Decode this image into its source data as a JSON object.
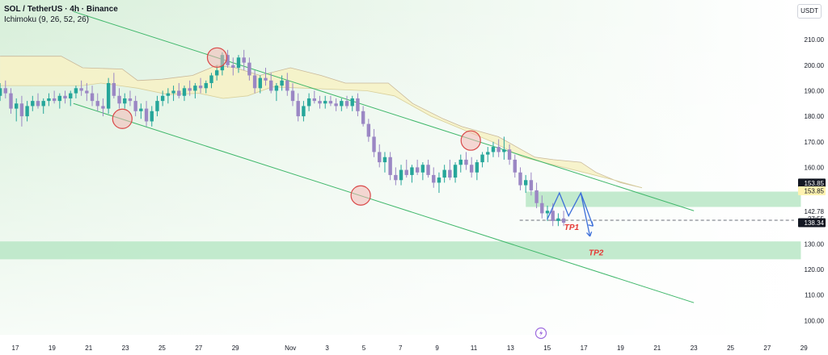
{
  "header": {
    "title": "SOL / TetherUS · 4h · Binance",
    "indicator": "Ichimoku (9, 26, 52, 26)",
    "currency_button": "USDT"
  },
  "colors": {
    "bull": "#26a69a",
    "bear": "#9b87c4",
    "channel": "#3fb76a",
    "zone": "#b9e6c6",
    "cloud": "#f6f2c6",
    "tp": "#e53935",
    "arrow": "#3d6fd9",
    "circle_fill": "#f2b8b5",
    "circle_stroke": "#d94848"
  },
  "chart_data": {
    "type": "candlestick",
    "y_ticks": [
      210,
      200,
      190,
      180,
      170,
      160,
      150,
      140,
      130,
      120,
      110,
      100
    ],
    "ylim": [
      96,
      223
    ],
    "x_ticks": [
      {
        "label": "17",
        "t": 0
      },
      {
        "label": "19",
        "t": 12
      },
      {
        "label": "21",
        "t": 24
      },
      {
        "label": "23",
        "t": 36
      },
      {
        "label": "25",
        "t": 48
      },
      {
        "label": "27",
        "t": 60
      },
      {
        "label": "29",
        "t": 72
      },
      {
        "label": "Nov",
        "t": 90
      },
      {
        "label": "3",
        "t": 102
      },
      {
        "label": "5",
        "t": 114
      },
      {
        "label": "7",
        "t": 126
      },
      {
        "label": "9",
        "t": 138
      },
      {
        "label": "11",
        "t": 150
      },
      {
        "label": "13",
        "t": 162
      },
      {
        "label": "15",
        "t": 174
      },
      {
        "label": "17",
        "t": 186
      },
      {
        "label": "19",
        "t": 198
      },
      {
        "label": "21",
        "t": 210
      },
      {
        "label": "23",
        "t": 222
      },
      {
        "label": "25",
        "t": 234
      },
      {
        "label": "27",
        "t": 246
      },
      {
        "label": "29",
        "t": 258
      }
    ],
    "price_tags": [
      {
        "label": "153.85",
        "value": 153.85,
        "style": "dark"
      },
      {
        "label": "153.85",
        "value": 150.8,
        "style": "yellow"
      },
      {
        "label": "142.78",
        "value": 142.78,
        "style": "plain"
      },
      {
        "label": "27:55",
        "value": 139.9,
        "style": "plain"
      },
      {
        "label": "138.34",
        "value": 138.34,
        "style": "dark"
      }
    ],
    "annotations": [
      {
        "text": "TP1",
        "t": 182,
        "y": 135.5
      },
      {
        "text": "TP2",
        "t": 190,
        "y": 125.5
      }
    ],
    "candles": [
      [
        188,
        193,
        186,
        191
      ],
      [
        191,
        194,
        187,
        189
      ],
      [
        189,
        191,
        181,
        183
      ],
      [
        183,
        187,
        178,
        185
      ],
      [
        185,
        188,
        176,
        180
      ],
      [
        180,
        186,
        178,
        184
      ],
      [
        184,
        188,
        182,
        186
      ],
      [
        186,
        189,
        183,
        184
      ],
      [
        184,
        187,
        181,
        186
      ],
      [
        186,
        189,
        184,
        187
      ],
      [
        187,
        190,
        185,
        186
      ],
      [
        186,
        189,
        183,
        188
      ],
      [
        188,
        190,
        185,
        187
      ],
      [
        187,
        190,
        184,
        189
      ],
      [
        189,
        192,
        187,
        191
      ],
      [
        191,
        194,
        188,
        190
      ],
      [
        190,
        193,
        186,
        189
      ],
      [
        189,
        192,
        184,
        186
      ],
      [
        186,
        189,
        182,
        184
      ],
      [
        184,
        187,
        180,
        183
      ],
      [
        183,
        195,
        181,
        193
      ],
      [
        193,
        197,
        187,
        188
      ],
      [
        188,
        191,
        183,
        185
      ],
      [
        185,
        189,
        183,
        187
      ],
      [
        187,
        190,
        184,
        186
      ],
      [
        186,
        188,
        180,
        182
      ],
      [
        182,
        185,
        179,
        183
      ],
      [
        183,
        186,
        176,
        178
      ],
      [
        178,
        184,
        176,
        182
      ],
      [
        182,
        188,
        180,
        186
      ],
      [
        186,
        190,
        184,
        188
      ],
      [
        188,
        191,
        185,
        189
      ],
      [
        189,
        192,
        186,
        190
      ],
      [
        190,
        193,
        187,
        188
      ],
      [
        188,
        192,
        186,
        191
      ],
      [
        191,
        194,
        188,
        190
      ],
      [
        190,
        193,
        187,
        192
      ],
      [
        192,
        195,
        189,
        191
      ],
      [
        191,
        194,
        189,
        193
      ],
      [
        193,
        197,
        191,
        196
      ],
      [
        196,
        200,
        194,
        198
      ],
      [
        198,
        205,
        196,
        204
      ],
      [
        204,
        206,
        199,
        200
      ],
      [
        200,
        203,
        196,
        199
      ],
      [
        199,
        204,
        197,
        203
      ],
      [
        203,
        206,
        198,
        201
      ],
      [
        201,
        203,
        194,
        196
      ],
      [
        196,
        198,
        189,
        191
      ],
      [
        191,
        196,
        189,
        195
      ],
      [
        195,
        199,
        192,
        194
      ],
      [
        194,
        197,
        189,
        190
      ],
      [
        190,
        193,
        186,
        192
      ],
      [
        192,
        196,
        190,
        194
      ],
      [
        194,
        197,
        188,
        190
      ],
      [
        190,
        193,
        184,
        186
      ],
      [
        186,
        189,
        178,
        180
      ],
      [
        180,
        186,
        178,
        184
      ],
      [
        184,
        189,
        182,
        187
      ],
      [
        187,
        190,
        185,
        186
      ],
      [
        186,
        188,
        183,
        185
      ],
      [
        185,
        188,
        183,
        186
      ],
      [
        186,
        188,
        184,
        185
      ],
      [
        185,
        187,
        182,
        184
      ],
      [
        184,
        187,
        182,
        186
      ],
      [
        186,
        188,
        183,
        184
      ],
      [
        184,
        188,
        182,
        187
      ],
      [
        187,
        189,
        180,
        182
      ],
      [
        182,
        184,
        176,
        177
      ],
      [
        177,
        179,
        170,
        172
      ],
      [
        172,
        175,
        164,
        166
      ],
      [
        166,
        169,
        160,
        162
      ],
      [
        162,
        166,
        158,
        164
      ],
      [
        164,
        166,
        155,
        157
      ],
      [
        157,
        160,
        153,
        155
      ],
      [
        155,
        161,
        153,
        159
      ],
      [
        159,
        163,
        156,
        157
      ],
      [
        157,
        161,
        154,
        160
      ],
      [
        160,
        163,
        157,
        158
      ],
      [
        158,
        162,
        155,
        161
      ],
      [
        161,
        163,
        156,
        157
      ],
      [
        157,
        160,
        152,
        154
      ],
      [
        154,
        158,
        150,
        156
      ],
      [
        156,
        161,
        154,
        159
      ],
      [
        159,
        163,
        155,
        156
      ],
      [
        156,
        162,
        154,
        161
      ],
      [
        161,
        165,
        158,
        163
      ],
      [
        163,
        166,
        159,
        161
      ],
      [
        161,
        164,
        156,
        158
      ],
      [
        158,
        163,
        155,
        162
      ],
      [
        162,
        166,
        160,
        165
      ],
      [
        165,
        168,
        162,
        166
      ],
      [
        166,
        170,
        164,
        168
      ],
      [
        168,
        171,
        164,
        166
      ],
      [
        166,
        172,
        163,
        167
      ],
      [
        167,
        169,
        161,
        163
      ],
      [
        163,
        165,
        156,
        158
      ],
      [
        158,
        160,
        151,
        153
      ],
      [
        153,
        157,
        150,
        155
      ],
      [
        155,
        158,
        149,
        151
      ],
      [
        151,
        154,
        144,
        146
      ],
      [
        146,
        149,
        140,
        142
      ],
      [
        142,
        145,
        139,
        143
      ],
      [
        143,
        146,
        137,
        139
      ],
      [
        139,
        142,
        137,
        140
      ],
      [
        140,
        143,
        137,
        138.34
      ]
    ]
  }
}
